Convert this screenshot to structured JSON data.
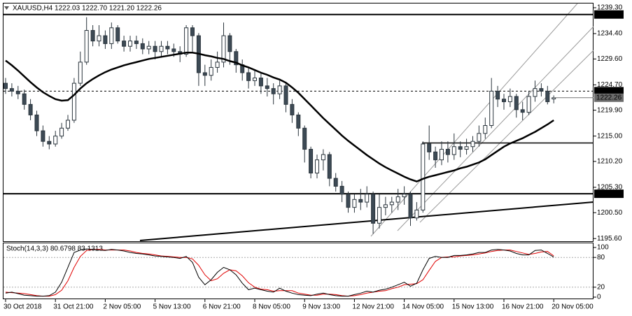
{
  "chart_data": {
    "type": "candlestick",
    "title": "XAUUSD,H4  1222.03 1222.70 1221.20 1222.26",
    "categories": [
      "30 Oct 2018",
      null,
      null,
      null,
      null,
      null,
      null,
      null,
      "31 Oct 21:00",
      null,
      null,
      null,
      null,
      null,
      null,
      null,
      "2 Nov 05:00",
      null,
      null,
      null,
      null,
      null,
      null,
      null,
      "5 Nov 13:00",
      null,
      null,
      null,
      null,
      null,
      null,
      null,
      "6 Nov 21:00",
      null,
      null,
      null,
      null,
      null,
      null,
      null,
      "8 Nov 05:00",
      null,
      null,
      null,
      null,
      null,
      null,
      null,
      "9 Nov 13:00",
      null,
      null,
      null,
      null,
      null,
      null,
      null,
      "12 Nov 21:00",
      null,
      null,
      null,
      null,
      null,
      null,
      null,
      "14 Nov 05:00",
      null,
      null,
      null,
      null,
      null,
      null,
      null,
      "15 Nov 13:00",
      null,
      null,
      null,
      null,
      null,
      null,
      null,
      "16 Nov 21:00",
      null,
      null,
      null,
      null,
      null,
      null,
      null,
      "20 Nov 05:00"
    ],
    "open": [
      1225,
      1224,
      1223.5,
      1223,
      1221,
      1219,
      1216,
      1214,
      1213.5,
      1215,
      1216.5,
      1218,
      1225,
      1229,
      1235,
      1233,
      1234,
      1232.5,
      1235.5,
      1233,
      1232,
      1233,
      1232.5,
      1231.5,
      1232,
      1231,
      1232,
      1231.5,
      1231,
      1230.5,
      1235.5,
      1234,
      1227,
      1226.5,
      1228,
      1229,
      1234,
      1231,
      1228.5,
      1227,
      1225.5,
      1226,
      1224.5,
      1224,
      1223,
      1224.5,
      1221,
      1219,
      1216.5,
      1212.5,
      1208,
      1210.5,
      1211.5,
      1207,
      1205.5,
      1204,
      1201.5,
      1203,
      1202.5,
      1204,
      1198.5,
      1201.5,
      1202,
      1202.5,
      1203.5,
      1204,
      1199.5,
      1201,
      1213.5,
      1212,
      1210.5,
      1212.5,
      1211.5,
      1213,
      1212.5,
      1213,
      1214,
      1215.5,
      1217,
      1223.5,
      1222,
      1221.5,
      1222.5,
      1220,
      1219.5,
      1222.5,
      1224,
      1223.5,
      1222.03
    ],
    "high": [
      1226,
      1225,
      1224.5,
      1223.8,
      1222,
      1219.8,
      1217,
      1215,
      1216,
      1217.5,
      1219,
      1226,
      1231,
      1237.5,
      1236,
      1236,
      1235,
      1236.5,
      1236,
      1234,
      1234,
      1234,
      1233.5,
      1233,
      1233,
      1233,
      1233,
      1232.5,
      1232,
      1236,
      1236,
      1234.5,
      1228.5,
      1229.5,
      1231,
      1236.5,
      1234.5,
      1231.5,
      1229.5,
      1228,
      1227.5,
      1227,
      1226,
      1225,
      1225.5,
      1225,
      1222,
      1219.5,
      1217,
      1213,
      1211.5,
      1212.5,
      1212,
      1208,
      1206.5,
      1204.5,
      1204,
      1205,
      1205.5,
      1204.5,
      1204,
      1203.5,
      1203.5,
      1205,
      1205.5,
      1204.5,
      1202.5,
      1214,
      1217,
      1213,
      1214,
      1214,
      1215.5,
      1214,
      1214.5,
      1215,
      1217,
      1218.5,
      1226,
      1224.5,
      1223,
      1224,
      1223,
      1221.5,
      1223.5,
      1225.5,
      1225,
      1224.5,
      1222.7
    ],
    "low": [
      1223,
      1222.5,
      1222,
      1220,
      1218,
      1215,
      1213,
      1212.5,
      1213,
      1214.5,
      1216,
      1217.5,
      1224.5,
      1228.5,
      1232,
      1232,
      1231.5,
      1231.5,
      1232.5,
      1231,
      1231,
      1231.5,
      1230.5,
      1230.5,
      1229.5,
      1230,
      1230.5,
      1230,
      1229,
      1230,
      1231,
      1224.5,
      1224.5,
      1225.5,
      1227,
      1228,
      1228.5,
      1227,
      1225.5,
      1224,
      1224.5,
      1223,
      1222.5,
      1221,
      1222,
      1219.5,
      1217.5,
      1215,
      1210,
      1207,
      1207,
      1208.5,
      1205.5,
      1204.5,
      1202.5,
      1200.5,
      1200.5,
      1201,
      1201.5,
      1196.5,
      1197.5,
      1200,
      1200.5,
      1201,
      1202,
      1198,
      1199,
      1200.5,
      1210.5,
      1209,
      1209.5,
      1210,
      1210.5,
      1211,
      1211.5,
      1212,
      1213,
      1214.5,
      1216.5,
      1220.5,
      1220,
      1220.5,
      1218.5,
      1218,
      1219,
      1221.5,
      1222.5,
      1221,
      1221.2
    ],
    "close": [
      1224,
      1223.5,
      1223,
      1221,
      1219,
      1216,
      1214,
      1213.5,
      1215,
      1216.5,
      1218,
      1225,
      1229,
      1235,
      1233,
      1234,
      1232.5,
      1235.5,
      1233,
      1232,
      1233,
      1232.5,
      1231.5,
      1232,
      1231,
      1232,
      1231.5,
      1231,
      1230.5,
      1235.5,
      1234,
      1227,
      1226.5,
      1228,
      1229,
      1234,
      1231,
      1228.5,
      1227,
      1225.5,
      1226,
      1224.5,
      1224,
      1223,
      1224.5,
      1221,
      1219,
      1216.5,
      1212.5,
      1208,
      1210.5,
      1211.5,
      1207,
      1205.5,
      1204,
      1201.5,
      1203,
      1202.5,
      1204,
      1198.5,
      1201.5,
      1202,
      1202.5,
      1203.5,
      1204,
      1199.5,
      1201,
      1213.5,
      1212,
      1210.5,
      1212.5,
      1211.5,
      1213,
      1212.5,
      1213,
      1214,
      1215.5,
      1217,
      1223.5,
      1222,
      1221.5,
      1222.5,
      1220,
      1219.5,
      1222.5,
      1224,
      1223.5,
      1221.5,
      1222.26
    ],
    "up_color": "#ffffff",
    "down_color": "#3d4a55",
    "moving_average": {
      "color": "#000000",
      "values": [
        1229.3,
        1228.4,
        1227.4,
        1226.3,
        1225.2,
        1224.2,
        1223.3,
        1222.6,
        1222.0,
        1221.7,
        1221.8,
        1222.8,
        1224.0,
        1225.0,
        1225.8,
        1226.5,
        1227.1,
        1227.6,
        1228.0,
        1228.4,
        1228.7,
        1229.0,
        1229.3,
        1229.6,
        1229.8,
        1230.0,
        1230.2,
        1230.4,
        1230.6,
        1230.8,
        1230.8,
        1230.6,
        1230.3,
        1230.1,
        1229.8,
        1229.6,
        1229.2,
        1228.9,
        1228.4,
        1228.0,
        1227.5,
        1227.0,
        1226.6,
        1226.1,
        1225.7,
        1225.1,
        1224.2,
        1223.2,
        1222.0,
        1220.8,
        1219.6,
        1218.4,
        1217.3,
        1216.2,
        1215.1,
        1214.1,
        1213.2,
        1212.3,
        1211.4,
        1210.6,
        1209.8,
        1209.1,
        1208.5,
        1207.9,
        1207.3,
        1206.8,
        1206.4,
        1206.9,
        1207.3,
        1207.6,
        1207.9,
        1208.2,
        1208.5,
        1208.9,
        1209.2,
        1209.6,
        1210.0,
        1210.6,
        1211.4,
        1212.2,
        1213.0,
        1213.6,
        1214.1,
        1214.6,
        1215.2,
        1215.8,
        1216.5,
        1217.2,
        1218.0
      ]
    },
    "ylim": [
      1195.1,
      1240.1
    ],
    "yticks": [
      {
        "value": 1239.3,
        "label": "1239.30"
      },
      {
        "value": 1234.4,
        "label": "1234.40"
      },
      {
        "value": 1229.6,
        "label": "1229.60"
      },
      {
        "value": 1224.7,
        "label": "1224.70"
      },
      {
        "value": 1219.9,
        "label": "1219.90"
      },
      {
        "value": 1215,
        "label": "1215.00"
      },
      {
        "value": 1210.2,
        "label": "1210.20"
      },
      {
        "value": 1205.3,
        "label": "1205.30"
      },
      {
        "value": 1200.5,
        "label": "1200.50"
      },
      {
        "value": 1195.6,
        "label": "1195.60"
      }
    ],
    "levels": [
      {
        "value": 1238.02,
        "label": "1238.02",
        "dashed": false
      },
      {
        "value": 1223.5,
        "label": "1223.50",
        "dashed": true
      },
      {
        "value": 1204.08,
        "label": "1204.08",
        "dashed": false
      }
    ],
    "stochastic": {
      "title": "Stoch(14,3,3) 80.6798 83.1313",
      "ylim": [
        0,
        100
      ],
      "yticks": [
        100,
        80,
        20,
        0
      ],
      "levels": [
        80,
        20
      ],
      "main": {
        "color": "#000000",
        "values": [
          8,
          10,
          7,
          4,
          3,
          2,
          2,
          3,
          10,
          30,
          60,
          90,
          95,
          97,
          96,
          95,
          94,
          96,
          95,
          93,
          90,
          88,
          87,
          85,
          83,
          82,
          81,
          80,
          78,
          82,
          70,
          40,
          25,
          35,
          50,
          60,
          55,
          45,
          28,
          15,
          18,
          15,
          12,
          10,
          18,
          12,
          8,
          5,
          4,
          3,
          6,
          8,
          5,
          3,
          2,
          2,
          5,
          8,
          12,
          10,
          14,
          16,
          20,
          25,
          30,
          22,
          28,
          55,
          78,
          82,
          80,
          80,
          84,
          84,
          85,
          87,
          90,
          90,
          95,
          96,
          95,
          93,
          88,
          85,
          85,
          94,
          95,
          88,
          80.6798
        ]
      },
      "signal": {
        "color": "#e00000",
        "values": [
          10,
          9,
          8,
          7,
          5,
          3,
          2,
          2,
          5,
          14,
          33,
          60,
          82,
          94,
          96,
          96,
          95,
          95,
          95,
          95,
          93,
          90,
          88,
          87,
          85,
          83,
          82,
          81,
          80,
          80,
          77,
          64,
          45,
          33,
          37,
          48,
          55,
          53,
          43,
          29,
          20,
          16,
          15,
          12,
          13,
          13,
          13,
          8,
          6,
          4,
          4,
          6,
          6,
          5,
          3,
          2,
          3,
          5,
          8,
          10,
          12,
          13,
          17,
          20,
          25,
          26,
          27,
          35,
          54,
          72,
          80,
          81,
          81,
          83,
          84,
          85,
          87,
          89,
          92,
          94,
          95,
          95,
          92,
          89,
          86,
          88,
          91,
          92,
          83.1313
        ]
      }
    }
  }
}
